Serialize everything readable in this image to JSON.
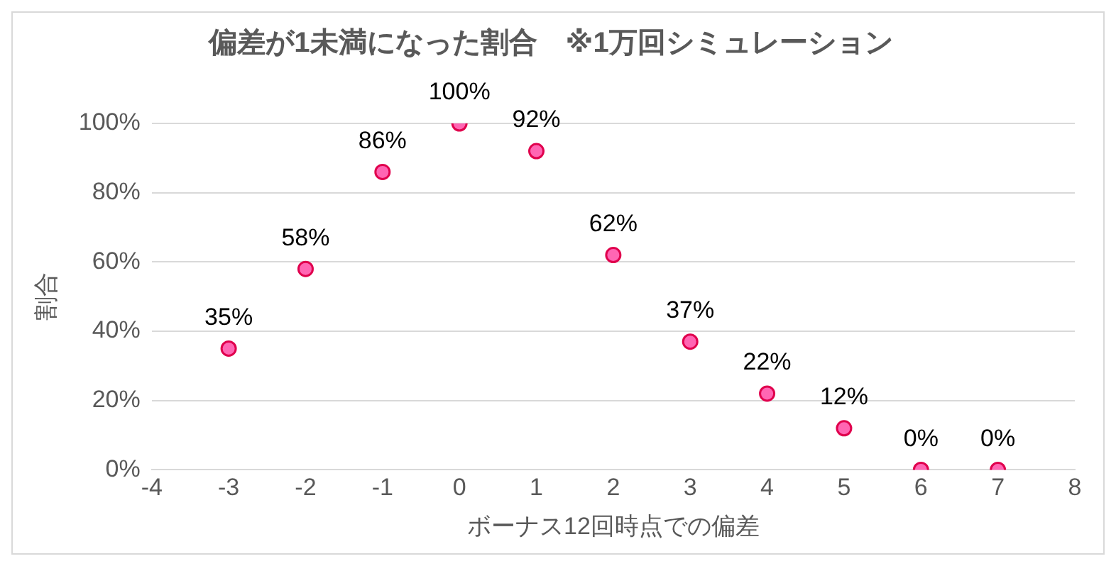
{
  "chart_data": {
    "type": "scatter",
    "title": "偏差が1未満になった割合　※1万回シミュレーション",
    "xlabel": "ボーナス12回時点での偏差",
    "ylabel": "割合",
    "x": [
      -3,
      -2,
      -1,
      0,
      1,
      2,
      3,
      4,
      5,
      6,
      7
    ],
    "series": [
      {
        "color": "#ff66b3",
        "values": [
          35,
          58,
          86,
          100,
          92,
          62,
          37,
          22,
          12,
          0,
          0
        ],
        "value_labels": [
          "35%",
          "58%",
          "86%",
          "100%",
          "92%",
          "62%",
          "37%",
          "22%",
          "12%",
          "0%",
          "0%"
        ]
      }
    ],
    "xlim": [
      -4,
      8
    ],
    "xticks": [
      -4,
      -3,
      -2,
      -1,
      0,
      1,
      2,
      3,
      4,
      5,
      6,
      7,
      8
    ],
    "ylim": [
      0,
      100
    ],
    "yticks": [
      {
        "value": 0,
        "label": "0%"
      },
      {
        "value": 20,
        "label": "20%"
      },
      {
        "value": 40,
        "label": "40%"
      },
      {
        "value": 60,
        "label": "60%"
      },
      {
        "value": 80,
        "label": "80%"
      },
      {
        "value": 100,
        "label": "100%"
      }
    ],
    "grid": "y",
    "legend": false,
    "marker": "circle"
  }
}
